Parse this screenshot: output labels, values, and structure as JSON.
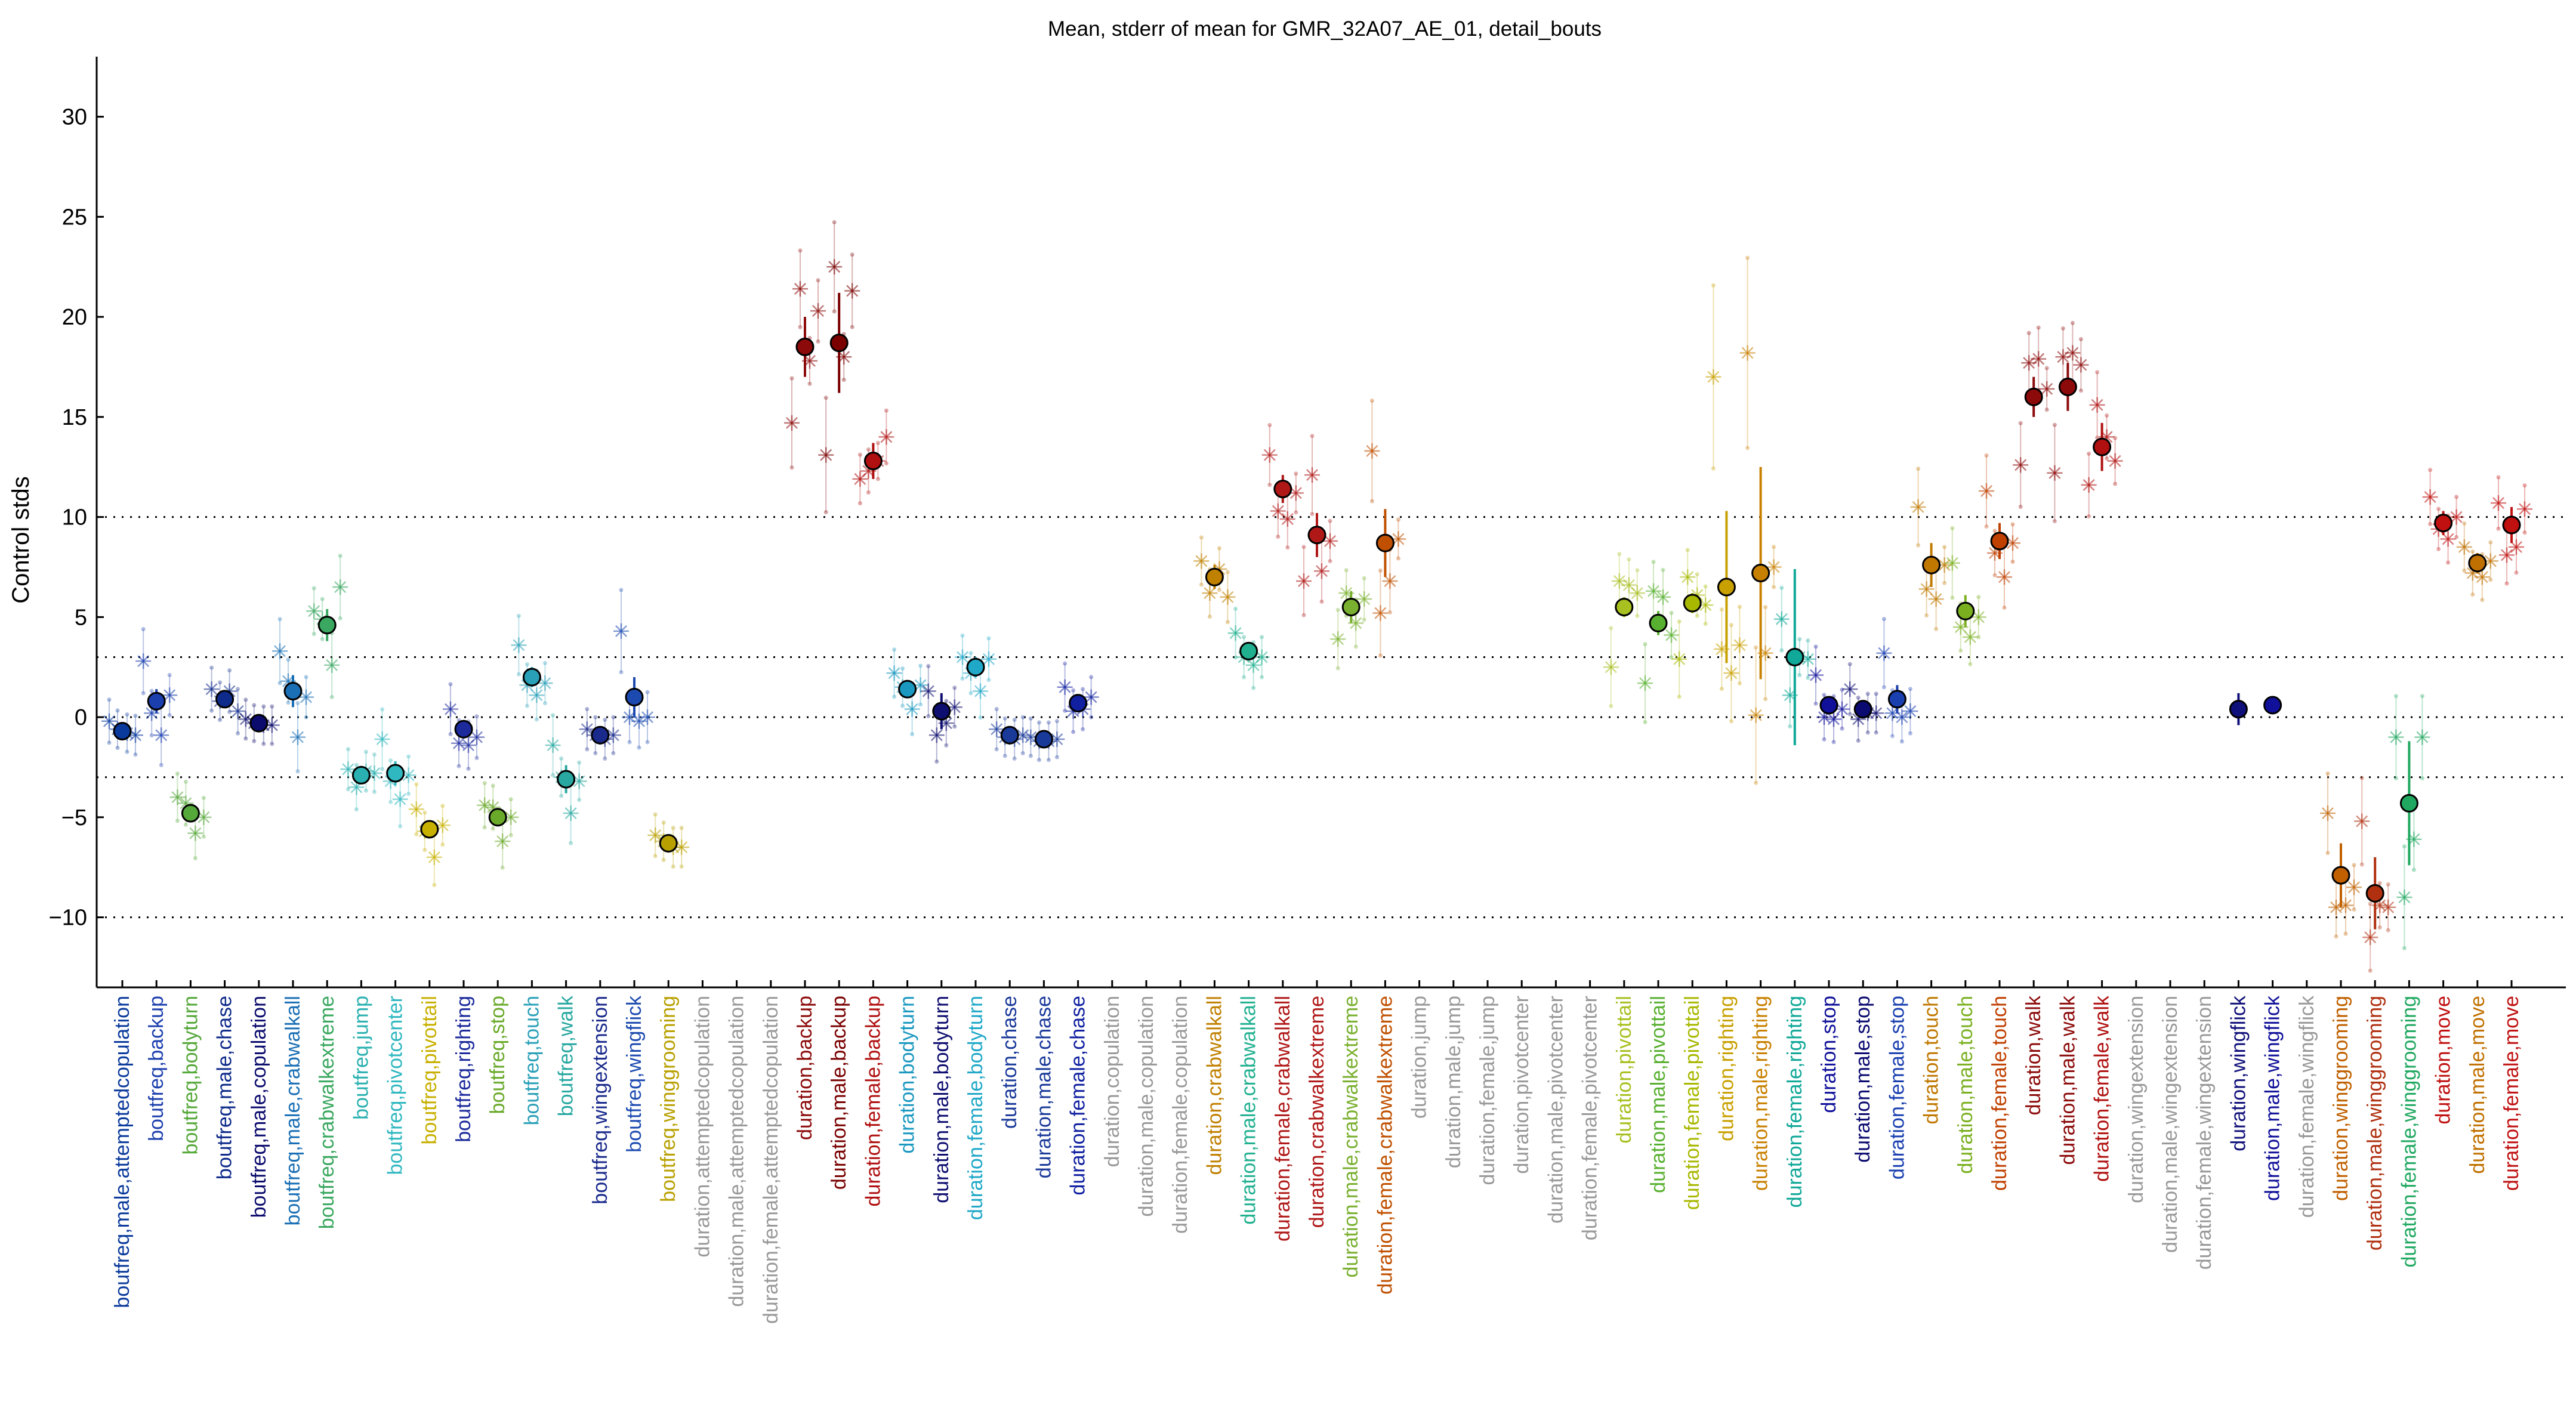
{
  "chart_data": {
    "type": "scatter",
    "title": "Mean, stderr of mean for GMR_32A07_AE_01, detail_bouts",
    "ylabel": "Control stds",
    "ylim": [
      -13.5,
      33
    ],
    "yticks": [
      -10,
      -5,
      0,
      5,
      10,
      15,
      20,
      25,
      30
    ],
    "reference_lines": [
      -10,
      -3,
      0,
      3,
      10
    ],
    "categories": [
      {
        "label": "boutfreq,male,attemptedcopulation",
        "color": "#0a3a9c",
        "mean": -0.7,
        "sem": 0.2,
        "points": [
          -0.2,
          -0.6,
          -0.8,
          -0.9
        ]
      },
      {
        "label": "boutfreq,backup",
        "color": "#1c3fae",
        "mean": 0.8,
        "sem": 0.6,
        "points": [
          2.8,
          0.2,
          -0.9,
          1.1
        ]
      },
      {
        "label": "boutfreq,bodyturn",
        "color": "#55a83a",
        "mean": -4.8,
        "sem": 0.3,
        "points": [
          -4.0,
          -4.3,
          -5.8,
          -5.0
        ]
      },
      {
        "label": "boutfreq,male,chase",
        "color": "#0e2a8a",
        "mean": 0.9,
        "sem": 0.3,
        "points": [
          1.4,
          0.8,
          1.3,
          0.3
        ]
      },
      {
        "label": "boutfreq,male,copulation",
        "color": "#0b0b6e",
        "mean": -0.3,
        "sem": 0.1,
        "points": [
          -0.1,
          -0.3,
          -0.4,
          -0.4
        ]
      },
      {
        "label": "boutfreq,male,crabwalkall",
        "color": "#1a6fb5",
        "mean": 1.3,
        "sem": 0.8,
        "points": [
          3.3,
          1.8,
          -1.0,
          1.0
        ]
      },
      {
        "label": "boutfreq,crabwalkextreme",
        "color": "#3aa860",
        "mean": 4.6,
        "sem": 0.8,
        "points": [
          5.3,
          4.9,
          2.6,
          6.5
        ]
      },
      {
        "label": "boutfreq,jump",
        "color": "#2ab0b0",
        "mean": -2.9,
        "sem": 0.2,
        "points": [
          -2.6,
          -3.5,
          -2.7,
          -2.8
        ]
      },
      {
        "label": "boutfreq,pivotcenter",
        "color": "#30b8c0",
        "mean": -2.8,
        "sem": 0.6,
        "points": [
          -1.1,
          -3.2,
          -4.1,
          -2.9
        ]
      },
      {
        "label": "boutfreq,pivottail",
        "color": "#c8b000",
        "mean": -5.6,
        "sem": 0.4,
        "points": [
          -4.6,
          -5.7,
          -7.0,
          -5.4
        ]
      },
      {
        "label": "boutfreq,righting",
        "color": "#1c2a9c",
        "mean": -0.6,
        "sem": 0.4,
        "points": [
          0.4,
          -1.3,
          -1.4,
          -1.0
        ]
      },
      {
        "label": "boutfreq,stop",
        "color": "#6aaa2a",
        "mean": -5.0,
        "sem": 0.4,
        "points": [
          -4.4,
          -4.5,
          -6.2,
          -5.0
        ]
      },
      {
        "label": "boutfreq,touch",
        "color": "#2aa0b8",
        "mean": 2.0,
        "sem": 0.5,
        "points": [
          3.6,
          1.6,
          1.1,
          1.7
        ]
      },
      {
        "label": "boutfreq,walk",
        "color": "#28a8a0",
        "mean": -3.1,
        "sem": 0.7,
        "points": [
          -1.4,
          -3.0,
          -4.8,
          -3.2
        ]
      },
      {
        "label": "boutfreq,wingextension",
        "color": "#1a2a8c",
        "mean": -0.9,
        "sem": 0.2,
        "points": [
          -0.6,
          -0.9,
          -1.1,
          -0.9
        ]
      },
      {
        "label": "boutfreq,wingflick",
        "color": "#1c4ab0",
        "mean": 1.0,
        "sem": 1.0,
        "points": [
          4.3,
          0.0,
          -0.2,
          0.0
        ]
      },
      {
        "label": "boutfreq,winggrooming",
        "color": "#b8a000",
        "mean": -6.3,
        "sem": 0.2,
        "points": [
          -5.9,
          -6.2,
          -6.5,
          -6.5
        ]
      },
      {
        "label": "duration,attemptedcopulation",
        "color": "#999999",
        "mean": null,
        "sem": null,
        "points": []
      },
      {
        "label": "duration,male,attemptedcopulation",
        "color": "#999999",
        "mean": null,
        "sem": null,
        "points": []
      },
      {
        "label": "duration,female,attemptedcopulation",
        "color": "#999999",
        "mean": null,
        "sem": null,
        "points": []
      },
      {
        "label": "duration,backup",
        "color": "#8c0a0a",
        "mean": 18.5,
        "sem": 1.5,
        "points": [
          14.7,
          21.4,
          17.8,
          20.3
        ]
      },
      {
        "label": "duration,male,backup",
        "color": "#7a0000",
        "mean": 18.7,
        "sem": 2.5,
        "points": [
          13.1,
          22.5,
          18.0,
          21.3
        ]
      },
      {
        "label": "duration,female,backup",
        "color": "#b01010",
        "mean": 12.8,
        "sem": 0.9,
        "points": [
          11.9,
          12.3,
          12.8,
          14.0
        ]
      },
      {
        "label": "duration,bodyturn",
        "color": "#1a98c0",
        "mean": 1.4,
        "sem": 0.3,
        "points": [
          2.2,
          1.5,
          0.4,
          1.6
        ]
      },
      {
        "label": "duration,male,bodyturn",
        "color": "#0e0e70",
        "mean": 0.3,
        "sem": 0.9,
        "points": [
          1.3,
          -0.9,
          -0.3,
          0.5
        ]
      },
      {
        "label": "duration,female,bodyturn",
        "color": "#20a8c8",
        "mean": 2.5,
        "sem": 0.5,
        "points": [
          3.0,
          2.2,
          1.3,
          2.9
        ]
      },
      {
        "label": "duration,chase",
        "color": "#1a3a9a",
        "mean": -0.9,
        "sem": 0.2,
        "points": [
          -0.6,
          -1.0,
          -1.1,
          -0.9
        ]
      },
      {
        "label": "duration,male,chase",
        "color": "#1a3a9a",
        "mean": -1.1,
        "sem": 0.1,
        "points": [
          -1.0,
          -1.2,
          -1.2,
          -1.1
        ]
      },
      {
        "label": "duration,female,chase",
        "color": "#1020a0",
        "mean": 0.7,
        "sem": 0.3,
        "points": [
          1.5,
          0.3,
          0.4,
          1.0
        ]
      },
      {
        "label": "duration,copulation",
        "color": "#999999",
        "mean": null,
        "sem": null,
        "points": []
      },
      {
        "label": "duration,male,copulation",
        "color": "#999999",
        "mean": null,
        "sem": null,
        "points": []
      },
      {
        "label": "duration,female,copulation",
        "color": "#999999",
        "mean": null,
        "sem": null,
        "points": []
      },
      {
        "label": "duration,crabwalkall",
        "color": "#c08000",
        "mean": 7.0,
        "sem": 0.6,
        "points": [
          7.8,
          6.2,
          7.4,
          6.0
        ]
      },
      {
        "label": "duration,male,crabwalkall",
        "color": "#20b090",
        "mean": 3.3,
        "sem": 0.3,
        "points": [
          4.2,
          3.0,
          2.6,
          3.0
        ]
      },
      {
        "label": "duration,female,crabwalkall",
        "color": "#b01818",
        "mean": 11.4,
        "sem": 0.7,
        "points": [
          13.1,
          10.3,
          9.9,
          11.2
        ]
      },
      {
        "label": "duration,crabwalkextreme",
        "color": "#b01818",
        "mean": 9.1,
        "sem": 1.1,
        "points": [
          6.8,
          12.1,
          7.3,
          8.8
        ]
      },
      {
        "label": "duration,male,crabwalkextreme",
        "color": "#7ab030",
        "mean": 5.5,
        "sem": 0.8,
        "points": [
          3.9,
          6.2,
          4.7,
          5.9
        ]
      },
      {
        "label": "duration,female,crabwalkextreme",
        "color": "#c05000",
        "mean": 8.7,
        "sem": 1.7,
        "points": [
          13.3,
          5.2,
          6.8,
          8.9
        ]
      },
      {
        "label": "duration,jump",
        "color": "#999999",
        "mean": null,
        "sem": null,
        "points": []
      },
      {
        "label": "duration,male,jump",
        "color": "#999999",
        "mean": null,
        "sem": null,
        "points": []
      },
      {
        "label": "duration,female,jump",
        "color": "#999999",
        "mean": null,
        "sem": null,
        "points": []
      },
      {
        "label": "duration,pivotcenter",
        "color": "#999999",
        "mean": null,
        "sem": null,
        "points": []
      },
      {
        "label": "duration,male,pivotcenter",
        "color": "#999999",
        "mean": null,
        "sem": null,
        "points": []
      },
      {
        "label": "duration,female,pivotcenter",
        "color": "#999999",
        "mean": null,
        "sem": null,
        "points": []
      },
      {
        "label": "duration,pivottail",
        "color": "#a8c020",
        "mean": 5.5,
        "sem": 0.5,
        "points": [
          2.5,
          6.8,
          6.6,
          6.2
        ]
      },
      {
        "label": "duration,male,pivottail",
        "color": "#58b030",
        "mean": 4.7,
        "sem": 0.6,
        "points": [
          1.7,
          6.3,
          6.0,
          4.1
        ]
      },
      {
        "label": "duration,female,pivottail",
        "color": "#a8b800",
        "mean": 5.7,
        "sem": 0.5,
        "points": [
          2.9,
          7.0,
          6.1,
          5.6
        ]
      },
      {
        "label": "duration,righting",
        "color": "#c8a000",
        "mean": 6.5,
        "sem": 3.8,
        "points": [
          17.0,
          3.4,
          2.2,
          3.6
        ]
      },
      {
        "label": "duration,male,righting",
        "color": "#c88000",
        "mean": 7.2,
        "sem": 5.3,
        "points": [
          18.2,
          0.1,
          3.2,
          7.5
        ]
      },
      {
        "label": "duration,female,righting",
        "color": "#10a898",
        "mean": 3.0,
        "sem": 4.4,
        "points": [
          4.9,
          1.1,
          3.0,
          2.9
        ]
      },
      {
        "label": "duration,stop",
        "color": "#10109a",
        "mean": 0.6,
        "sem": 0.3,
        "points": [
          2.1,
          0.0,
          -0.1,
          0.4
        ]
      },
      {
        "label": "duration,male,stop",
        "color": "#0a0a70",
        "mean": 0.4,
        "sem": 0.3,
        "points": [
          1.4,
          -0.1,
          0.2,
          0.2
        ]
      },
      {
        "label": "duration,female,stop",
        "color": "#1a40b0",
        "mean": 0.9,
        "sem": 0.7,
        "points": [
          3.2,
          0.2,
          0.0,
          0.3
        ]
      },
      {
        "label": "duration,touch",
        "color": "#c07800",
        "mean": 7.6,
        "sem": 1.1,
        "points": [
          10.5,
          6.4,
          5.9,
          7.6
        ]
      },
      {
        "label": "duration,male,touch",
        "color": "#7ab020",
        "mean": 5.3,
        "sem": 0.8,
        "points": [
          7.7,
          4.5,
          4.0,
          5.0
        ]
      },
      {
        "label": "duration,female,touch",
        "color": "#c04000",
        "mean": 8.8,
        "sem": 0.9,
        "points": [
          11.3,
          8.2,
          7.0,
          8.7
        ]
      },
      {
        "label": "duration,walk",
        "color": "#8c0a0a",
        "mean": 16.0,
        "sem": 1.0,
        "points": [
          12.6,
          17.7,
          17.9,
          16.4
        ]
      },
      {
        "label": "duration,male,walk",
        "color": "#8c0a0a",
        "mean": 16.5,
        "sem": 1.2,
        "points": [
          12.2,
          18.0,
          18.2,
          17.6
        ]
      },
      {
        "label": "duration,female,walk",
        "color": "#b01010",
        "mean": 13.5,
        "sem": 1.2,
        "points": [
          11.6,
          15.6,
          14.0,
          12.8
        ]
      },
      {
        "label": "duration,wingextension",
        "color": "#999999",
        "mean": null,
        "sem": null,
        "points": []
      },
      {
        "label": "duration,male,wingextension",
        "color": "#999999",
        "mean": null,
        "sem": null,
        "points": []
      },
      {
        "label": "duration,female,wingextension",
        "color": "#999999",
        "mean": null,
        "sem": null,
        "points": []
      },
      {
        "label": "duration,wingflick",
        "color": "#10107a",
        "mean": 0.4,
        "sem": 0.8,
        "points": []
      },
      {
        "label": "duration,male,wingflick",
        "color": "#10109a",
        "mean": 0.6,
        "sem": 0.4,
        "points": []
      },
      {
        "label": "duration,female,wingflick",
        "color": "#999999",
        "mean": null,
        "sem": null,
        "points": []
      },
      {
        "label": "duration,winggrooming",
        "color": "#c06000",
        "mean": -7.9,
        "sem": 1.6,
        "points": [
          -4.8,
          -9.5,
          -9.4,
          -8.5
        ]
      },
      {
        "label": "duration,male,winggrooming",
        "color": "#b03010",
        "mean": -8.8,
        "sem": 1.8,
        "points": [
          -5.2,
          -11.0,
          -9.4,
          -9.5
        ]
      },
      {
        "label": "duration,female,winggrooming",
        "color": "#20a860",
        "mean": -4.3,
        "sem": 3.1,
        "points": [
          -1.0,
          -9.0,
          -6.1,
          -1.0
        ]
      },
      {
        "label": "duration,move",
        "color": "#c01010",
        "mean": 9.7,
        "sem": 0.6,
        "points": [
          11.0,
          9.4,
          8.9,
          10.0
        ]
      },
      {
        "label": "duration,male,move",
        "color": "#c07000",
        "mean": 7.7,
        "sem": 0.5,
        "points": [
          8.5,
          7.2,
          7.0,
          7.8
        ]
      },
      {
        "label": "duration,female,move",
        "color": "#c01010",
        "mean": 9.6,
        "sem": 0.9,
        "points": [
          10.7,
          8.1,
          8.5,
          10.4
        ]
      }
    ]
  }
}
